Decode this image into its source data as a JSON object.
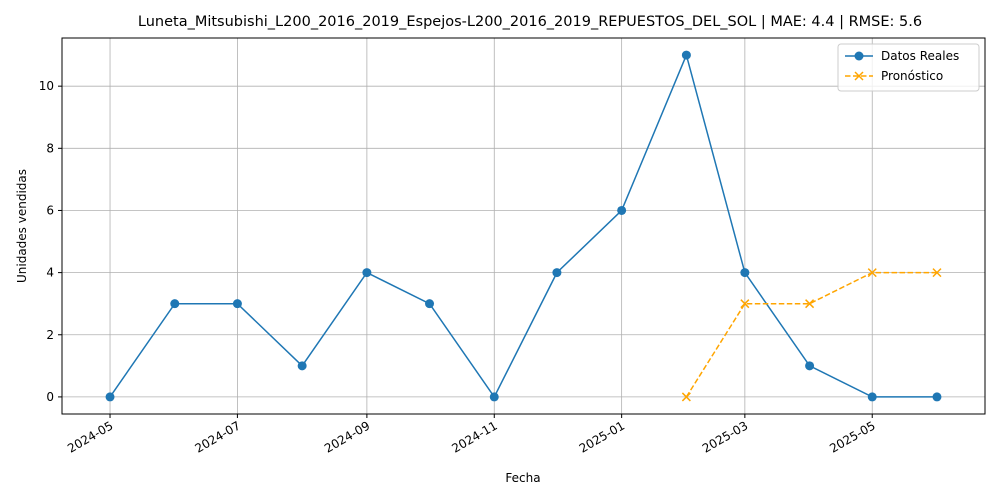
{
  "chart_data": {
    "type": "line",
    "title": "Luneta_Mitsubishi_L200_2016_2019_Espejos-L200_2016_2019_REPUESTOS_DEL_SOL | MAE: 4.4 | RMSE: 5.6",
    "xlabel": "Fecha",
    "ylabel": "Unidades vendidas",
    "xlim": [
      "2024-04-08",
      "2025-06-24"
    ],
    "ylim": [
      -0.55,
      11.55
    ],
    "x_ticks": [
      "2024-05",
      "2024-07",
      "2024-09",
      "2024-11",
      "2025-01",
      "2025-03",
      "2025-05"
    ],
    "y_ticks": [
      0,
      2,
      4,
      6,
      8,
      10
    ],
    "grid": true,
    "legend_position": "top-right",
    "series": [
      {
        "name": "Datos Reales",
        "color": "#1f77b4",
        "marker": "circle",
        "line_style": "solid",
        "x": [
          "2024-05-01",
          "2024-06-01",
          "2024-07-01",
          "2024-08-01",
          "2024-09-01",
          "2024-10-01",
          "2024-11-01",
          "2024-12-01",
          "2025-01-01",
          "2025-02-01",
          "2025-03-01",
          "2025-04-01",
          "2025-05-01",
          "2025-06-01"
        ],
        "values": [
          0,
          3,
          3,
          1,
          4,
          3,
          0,
          4,
          6,
          11,
          4,
          1,
          0,
          0
        ]
      },
      {
        "name": "Pronóstico",
        "color": "#ffa500",
        "marker": "x",
        "line_style": "dashed",
        "x": [
          "2025-02-01",
          "2025-03-01",
          "2025-04-01",
          "2025-05-01",
          "2025-06-01"
        ],
        "values": [
          0,
          3,
          3,
          4,
          4
        ]
      }
    ]
  }
}
